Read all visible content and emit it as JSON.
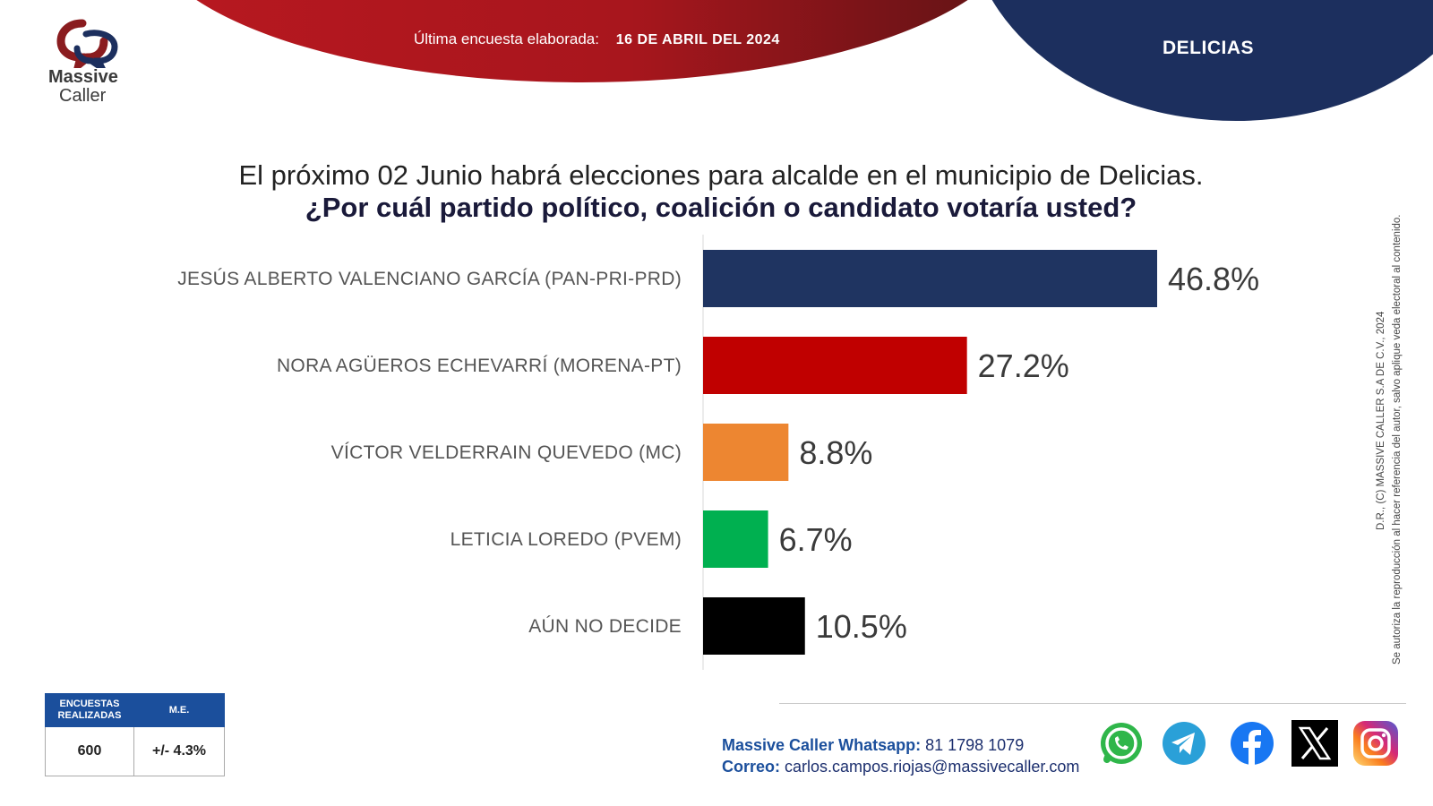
{
  "header": {
    "date_label": "Última encuesta elaborada:",
    "date_value": "16 DE ABRIL DEL 2024",
    "city": "DELICIAS"
  },
  "logo": {
    "word1": "Massive",
    "word2": "Caller"
  },
  "question": {
    "line1": "El próximo 02 Junio habrá elecciones para alcalde en el municipio de Delicias.",
    "line2": "¿Por cuál partido político, coalición o candidato votaría usted?"
  },
  "chart_data": {
    "type": "bar",
    "orientation": "horizontal",
    "categories": [
      "JESÚS ALBERTO VALENCIANO GARCÍA (PAN-PRI-PRD)",
      "NORA AGÜEROS ECHEVARRÍ (MORENA-PT)",
      "VÍCTOR VELDERRAIN QUEVEDO (MC)",
      "LETICIA LOREDO (PVEM)",
      "AÚN NO DECIDE"
    ],
    "values": [
      46.8,
      27.2,
      8.8,
      6.7,
      10.5
    ],
    "value_labels": [
      "46.8%",
      "27.2%",
      "8.8%",
      "6.7%",
      "10.5%"
    ],
    "colors": [
      "#1f3461",
      "#c00000",
      "#ed8631",
      "#00b050",
      "#000000"
    ],
    "unit": "%",
    "xlim": [
      0,
      50
    ],
    "grid": false
  },
  "stats": {
    "header1": "ENCUESTAS REALIZADAS",
    "header2": "M.E.",
    "value1": "600",
    "value2": "+/- 4.3%"
  },
  "contact": {
    "whatsapp_label": "Massive Caller Whatsapp:",
    "whatsapp_value": "81 1798 1079",
    "email_label": "Correo:",
    "email_value": "carlos.campos.riojas@massivecaller.com"
  },
  "disclaimer": {
    "line1": "D.R., (C) MASSIVE CALLER S.A DE C.V., 2024",
    "line2": "Se autoriza la reproducción al hacer referencia del autor, salvo aplique veda electoral al contenido."
  },
  "social_icons": [
    "whatsapp-icon",
    "telegram-icon",
    "facebook-icon",
    "x-icon",
    "instagram-icon"
  ]
}
